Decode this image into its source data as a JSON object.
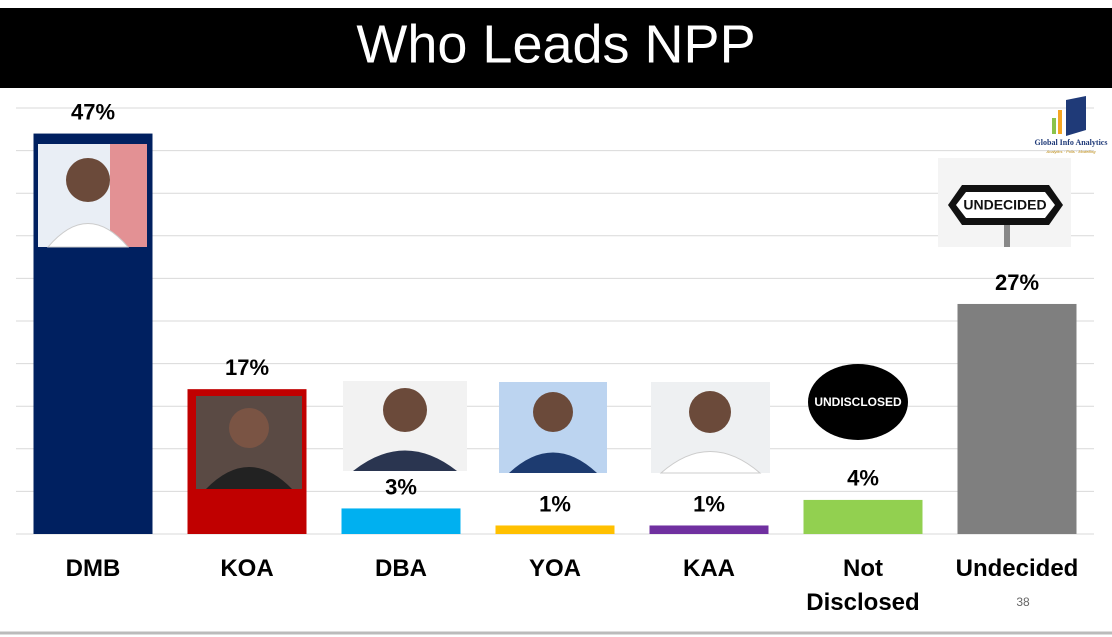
{
  "chart_data": {
    "type": "bar",
    "title": "Who Leads NPP",
    "categories": [
      "DMB",
      "KOA",
      "DBA",
      "YOA",
      "KAA",
      "Not Disclosed",
      "Undecided"
    ],
    "values": [
      47,
      17,
      3,
      1,
      1,
      4,
      27
    ],
    "value_labels": [
      "47%",
      "17%",
      "3%",
      "1%",
      "1%",
      "4%",
      "27%"
    ],
    "colors": [
      "#002060",
      "#c00000",
      "#00b0f0",
      "#ffc000",
      "#7030a0",
      "#92d050",
      "#7f7f7f"
    ],
    "ylim": [
      0,
      50
    ],
    "yticks": [
      0,
      5,
      10,
      15,
      20,
      25,
      30,
      35,
      40,
      45,
      50
    ],
    "grid": true
  },
  "images": {
    "undisclosed_label": "UNDISCLOSED",
    "undecided_sign": "UNDECIDED"
  },
  "logo": {
    "name": "Global Info Analytics",
    "tagline": "Analytics · Polls · Modelling"
  },
  "page_number": "38"
}
